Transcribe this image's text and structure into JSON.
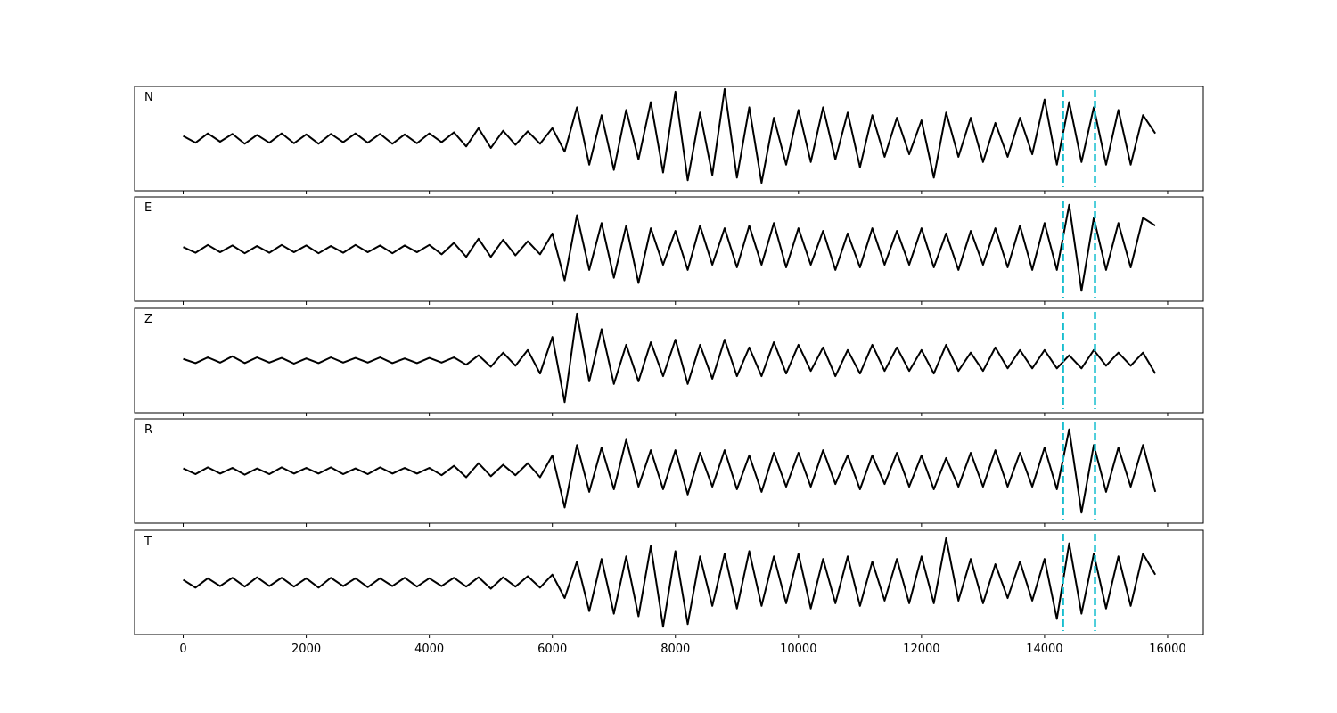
{
  "chart_data": {
    "type": "line",
    "x": [
      0,
      200,
      400,
      600,
      800,
      1000,
      1200,
      1400,
      1600,
      1800,
      2000,
      2200,
      2400,
      2600,
      2800,
      3000,
      3200,
      3400,
      3600,
      3800,
      4000,
      4200,
      4400,
      4600,
      4800,
      5000,
      5200,
      5400,
      5600,
      5800,
      6000,
      6200,
      6400,
      6600,
      6800,
      7000,
      7200,
      7400,
      7600,
      7800,
      8000,
      8200,
      8400,
      8600,
      8800,
      9000,
      9200,
      9400,
      9600,
      9800,
      10000,
      10200,
      10400,
      10600,
      10800,
      11000,
      11200,
      11400,
      11600,
      11800,
      12000,
      12200,
      12400,
      12600,
      12800,
      13000,
      13200,
      13400,
      13600,
      13800,
      14000,
      14200,
      14400,
      14600,
      14800,
      15000,
      15200,
      15400,
      15600,
      15800
    ],
    "series": [
      {
        "name": "N",
        "color": "#000000",
        "values": [
          0.05,
          -0.08,
          0.1,
          -0.06,
          0.09,
          -0.1,
          0.07,
          -0.08,
          0.1,
          -0.09,
          0.08,
          -0.1,
          0.09,
          -0.07,
          0.1,
          -0.08,
          0.09,
          -0.1,
          0.08,
          -0.09,
          0.1,
          -0.07,
          0.12,
          -0.15,
          0.2,
          -0.18,
          0.15,
          -0.12,
          0.14,
          -0.1,
          0.2,
          -0.25,
          0.6,
          -0.5,
          0.45,
          -0.6,
          0.55,
          -0.4,
          0.7,
          -0.65,
          0.9,
          -0.8,
          0.5,
          -0.7,
          0.95,
          -0.75,
          0.6,
          -0.85,
          0.4,
          -0.5,
          0.55,
          -0.45,
          0.6,
          -0.4,
          0.5,
          -0.55,
          0.45,
          -0.35,
          0.4,
          -0.3,
          0.35,
          -0.75,
          0.5,
          -0.35,
          0.4,
          -0.45,
          0.3,
          -0.35,
          0.4,
          -0.3,
          0.75,
          -0.5,
          0.7,
          -0.45,
          0.6,
          -0.5,
          0.55,
          -0.5,
          0.45,
          0.1
        ]
      },
      {
        "name": "E",
        "color": "#000000",
        "values": [
          0.04,
          -0.07,
          0.08,
          -0.06,
          0.07,
          -0.08,
          0.06,
          -0.07,
          0.08,
          -0.06,
          0.07,
          -0.08,
          0.06,
          -0.07,
          0.08,
          -0.06,
          0.07,
          -0.08,
          0.07,
          -0.06,
          0.08,
          -0.1,
          0.12,
          -0.15,
          0.2,
          -0.15,
          0.18,
          -0.12,
          0.15,
          -0.1,
          0.3,
          -0.6,
          0.65,
          -0.4,
          0.5,
          -0.55,
          0.45,
          -0.65,
          0.4,
          -0.3,
          0.35,
          -0.4,
          0.45,
          -0.3,
          0.4,
          -0.35,
          0.45,
          -0.3,
          0.5,
          -0.35,
          0.4,
          -0.3,
          0.35,
          -0.4,
          0.3,
          -0.35,
          0.4,
          -0.3,
          0.35,
          -0.3,
          0.4,
          -0.35,
          0.3,
          -0.4,
          0.35,
          -0.3,
          0.4,
          -0.35,
          0.45,
          -0.4,
          0.5,
          -0.4,
          0.85,
          -0.8,
          0.6,
          -0.4,
          0.5,
          -0.35,
          0.6,
          0.45
        ]
      },
      {
        "name": "Z",
        "color": "#000000",
        "values": [
          0.03,
          -0.05,
          0.06,
          -0.04,
          0.08,
          -0.05,
          0.06,
          -0.04,
          0.05,
          -0.06,
          0.04,
          -0.05,
          0.06,
          -0.04,
          0.05,
          -0.04,
          0.06,
          -0.05,
          0.04,
          -0.05,
          0.05,
          -0.04,
          0.06,
          -0.08,
          0.1,
          -0.12,
          0.15,
          -0.1,
          0.2,
          -0.25,
          0.45,
          -0.8,
          0.9,
          -0.4,
          0.6,
          -0.45,
          0.3,
          -0.4,
          0.35,
          -0.3,
          0.4,
          -0.45,
          0.3,
          -0.35,
          0.4,
          -0.3,
          0.25,
          -0.3,
          0.35,
          -0.25,
          0.3,
          -0.2,
          0.25,
          -0.3,
          0.2,
          -0.25,
          0.3,
          -0.2,
          0.25,
          -0.2,
          0.2,
          -0.25,
          0.3,
          -0.2,
          0.15,
          -0.2,
          0.25,
          -0.15,
          0.2,
          -0.15,
          0.2,
          -0.15,
          0.1,
          -0.15,
          0.2,
          -0.1,
          0.15,
          -0.1,
          0.15,
          -0.25
        ]
      },
      {
        "name": "R",
        "color": "#000000",
        "values": [
          0.05,
          -0.06,
          0.07,
          -0.05,
          0.06,
          -0.07,
          0.05,
          -0.06,
          0.07,
          -0.05,
          0.06,
          -0.05,
          0.07,
          -0.06,
          0.05,
          -0.06,
          0.07,
          -0.05,
          0.06,
          -0.05,
          0.06,
          -0.08,
          0.1,
          -0.12,
          0.15,
          -0.1,
          0.12,
          -0.08,
          0.15,
          -0.12,
          0.3,
          -0.7,
          0.5,
          -0.4,
          0.45,
          -0.35,
          0.6,
          -0.3,
          0.4,
          -0.35,
          0.4,
          -0.45,
          0.35,
          -0.3,
          0.4,
          -0.35,
          0.3,
          -0.4,
          0.35,
          -0.3,
          0.35,
          -0.3,
          0.4,
          -0.25,
          0.3,
          -0.35,
          0.3,
          -0.25,
          0.35,
          -0.3,
          0.3,
          -0.35,
          0.25,
          -0.3,
          0.35,
          -0.3,
          0.4,
          -0.3,
          0.35,
          -0.3,
          0.45,
          -0.35,
          0.8,
          -0.8,
          0.5,
          -0.4,
          0.45,
          -0.3,
          0.5,
          -0.4
        ]
      },
      {
        "name": "T",
        "color": "#000000",
        "values": [
          0.05,
          -0.1,
          0.08,
          -0.07,
          0.09,
          -0.08,
          0.1,
          -0.07,
          0.09,
          -0.08,
          0.08,
          -0.1,
          0.09,
          -0.07,
          0.08,
          -0.09,
          0.08,
          -0.07,
          0.09,
          -0.08,
          0.08,
          -0.07,
          0.09,
          -0.08,
          0.1,
          -0.12,
          0.1,
          -0.08,
          0.12,
          -0.1,
          0.15,
          -0.3,
          0.4,
          -0.55,
          0.45,
          -0.6,
          0.5,
          -0.65,
          0.7,
          -0.85,
          0.6,
          -0.8,
          0.5,
          -0.45,
          0.55,
          -0.5,
          0.6,
          -0.45,
          0.5,
          -0.4,
          0.55,
          -0.5,
          0.45,
          -0.4,
          0.5,
          -0.45,
          0.4,
          -0.35,
          0.45,
          -0.4,
          0.5,
          -0.4,
          0.85,
          -0.35,
          0.45,
          -0.4,
          0.35,
          -0.3,
          0.4,
          -0.35,
          0.45,
          -0.7,
          0.75,
          -0.6,
          0.55,
          -0.5,
          0.5,
          -0.45,
          0.55,
          0.15
        ]
      }
    ],
    "xlim": [
      -790,
      16580
    ],
    "xticks": [
      0,
      2000,
      4000,
      6000,
      8000,
      10000,
      12000,
      14000,
      16000
    ],
    "ylim": [
      -1,
      1
    ],
    "vlines": [
      14300,
      14820
    ],
    "vline_color": "#17becf"
  }
}
